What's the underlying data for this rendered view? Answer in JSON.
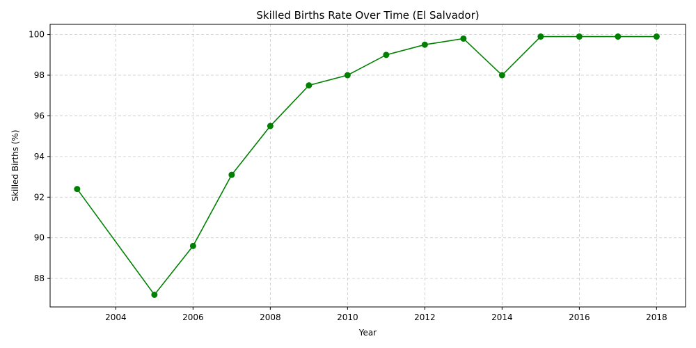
{
  "chart_data": {
    "type": "line",
    "title": "Skilled Births Rate Over Time (El Salvador)",
    "xlabel": "Year",
    "ylabel": "Skilled Births (%)",
    "xlim": [
      2002.3,
      2018.75
    ],
    "ylim": [
      86.6,
      100.5
    ],
    "xticks": [
      2004,
      2006,
      2008,
      2010,
      2012,
      2014,
      2016,
      2018
    ],
    "xtick_labels": [
      "2004",
      "2006",
      "2008",
      "2010",
      "2012",
      "2014",
      "2016",
      "2018"
    ],
    "yticks": [
      88,
      90,
      92,
      94,
      96,
      98,
      100
    ],
    "ytick_labels": [
      "88",
      "90",
      "92",
      "94",
      "96",
      "98",
      "100"
    ],
    "grid": true,
    "grid_style": "dashed",
    "line_color": "#008000",
    "marker": "circle",
    "series": [
      {
        "x": [
          2003,
          2005,
          2006,
          2007,
          2008,
          2009,
          2010,
          2011,
          2012,
          2013,
          2014,
          2015,
          2016,
          2017,
          2018
        ],
        "y": [
          92.4,
          87.2,
          89.6,
          93.1,
          95.5,
          97.5,
          98.0,
          99.0,
          99.5,
          99.8,
          98.0,
          99.9,
          99.9,
          99.9,
          99.9
        ]
      }
    ]
  }
}
